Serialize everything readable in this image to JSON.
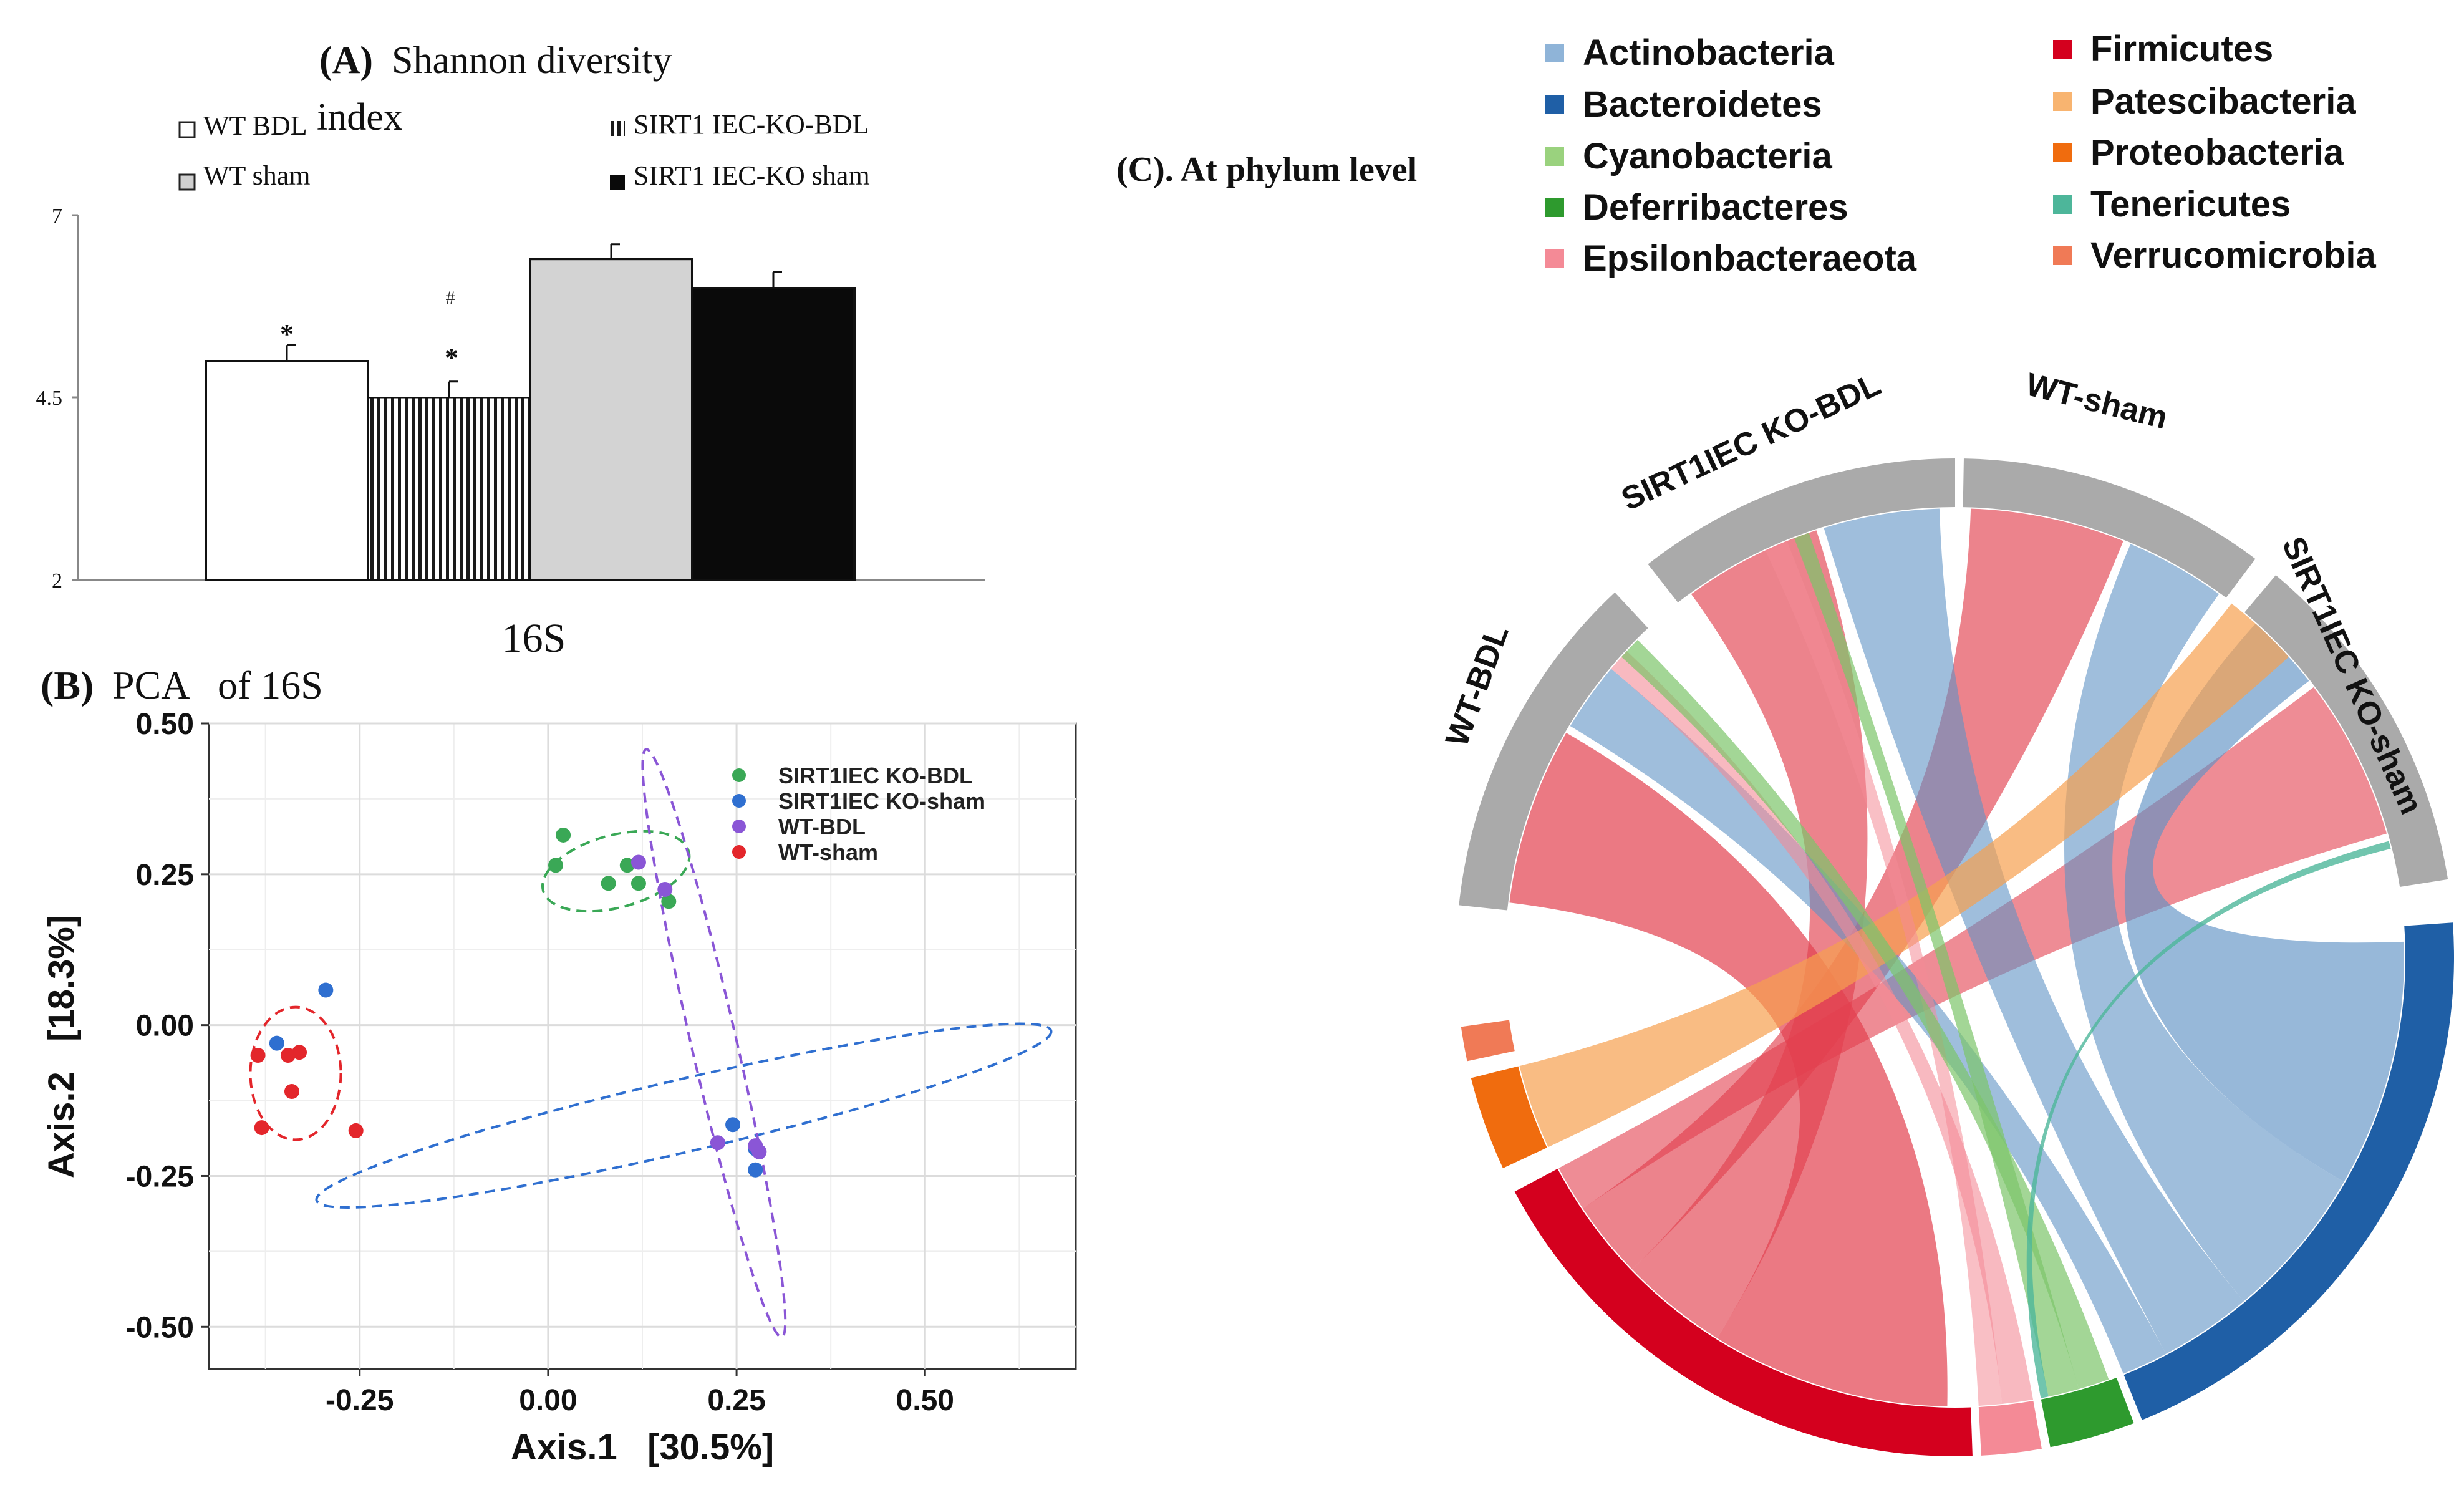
{
  "panelA": {
    "label": "(A)",
    "title_line1": "Shannon diversity",
    "title_line2": "index",
    "xlabel": "16S",
    "ylim": [
      2,
      7
    ],
    "yticks": [
      "7",
      "4.5",
      "2"
    ],
    "ytick_values": [
      7,
      4.5,
      2
    ],
    "legend": [
      {
        "label": "WT BDL",
        "fill": "#ffffff",
        "pattern": "none"
      },
      {
        "label": "SIRT1 IEC-KO-BDL",
        "fill": "#ffffff",
        "pattern": "vstripes"
      },
      {
        "label": "WT sham",
        "fill": "#d0d0d0",
        "pattern": "none"
      },
      {
        "label": "SIRT1 IEC-KO sham",
        "fill": "#0a0a0a",
        "pattern": "none"
      }
    ]
  },
  "chart_data": [
    {
      "type": "bar",
      "title": "(A) Shannon diversity index",
      "xlabel": "16S",
      "ylabel": "",
      "ylim": [
        2,
        7
      ],
      "categories": [
        "WT BDL",
        "SIRT1 IEC-KO-BDL",
        "WT sham",
        "SIRT1 IEC-KO sham"
      ],
      "values": [
        5.0,
        4.5,
        6.4,
        6.0
      ],
      "errors": [
        0.22,
        0.22,
        0.2,
        0.22
      ],
      "annotations": [
        {
          "category": "WT BDL",
          "marks": [
            "*"
          ]
        },
        {
          "category": "SIRT1 IEC-KO-BDL",
          "marks": [
            "#",
            "*"
          ]
        }
      ]
    },
    {
      "type": "scatter",
      "title": "(B) PCA of 16S",
      "xlabel": "Axis.1   [30.5%]",
      "ylabel": "Axis.2   [18.3%]",
      "xlim": [
        -0.45,
        0.7
      ],
      "ylim": [
        -0.57,
        0.5
      ],
      "xticks": [
        -0.25,
        0.0,
        0.25,
        0.5
      ],
      "xtick_labels": [
        "-0.25",
        "0.00",
        "0.25",
        "0.50"
      ],
      "yticks": [
        0.5,
        0.25,
        0.0,
        -0.25,
        -0.5
      ],
      "ytick_labels": [
        "0.50",
        "0.25",
        "0.00",
        "-0.25",
        "-0.50"
      ],
      "legend_position": "top-right",
      "series": [
        {
          "name": "SIRT1IEC KO-BDL",
          "color": "#3aa856",
          "points": [
            [
              0.02,
              0.315
            ],
            [
              0.01,
              0.265
            ],
            [
              0.08,
              0.235
            ],
            [
              0.12,
              0.235
            ],
            [
              0.16,
              0.205
            ],
            [
              0.105,
              0.265
            ]
          ],
          "ellipse": {
            "cx": 0.09,
            "cy": 0.255,
            "rx": 0.1,
            "ry": 0.06,
            "angle": -15
          }
        },
        {
          "name": "SIRT1IEC KO-sham",
          "color": "#2f6fd0",
          "points": [
            [
              -0.295,
              0.058
            ],
            [
              -0.36,
              -0.03
            ],
            [
              0.245,
              -0.165
            ],
            [
              0.275,
              -0.24
            ],
            [
              0.275,
              -0.205
            ]
          ],
          "ellipse": {
            "cx": 0.18,
            "cy": -0.15,
            "rx": 0.5,
            "ry": 0.06,
            "angle": -13
          }
        },
        {
          "name": "WT-BDL",
          "color": "#8a56d6",
          "points": [
            [
              0.12,
              0.27
            ],
            [
              0.155,
              0.225
            ],
            [
              0.225,
              -0.195
            ],
            [
              0.28,
              -0.21
            ],
            [
              0.275,
              -0.2
            ]
          ],
          "ellipse": {
            "cx": 0.22,
            "cy": -0.03,
            "rx": 0.03,
            "ry": 0.5,
            "angle": -13
          }
        },
        {
          "name": "WT-sham",
          "color": "#e3262b",
          "points": [
            [
              -0.385,
              -0.05
            ],
            [
              -0.345,
              -0.05
            ],
            [
              -0.33,
              -0.045
            ],
            [
              -0.34,
              -0.11
            ],
            [
              -0.38,
              -0.17
            ],
            [
              -0.255,
              -0.175
            ]
          ],
          "ellipse": {
            "cx": -0.335,
            "cy": -0.08,
            "rx": 0.06,
            "ry": 0.11,
            "angle": 0
          }
        }
      ]
    },
    {
      "type": "chord",
      "title": "(C). At phylum level",
      "sectors": [
        {
          "name": "WT-BDL",
          "color": "#aaaaaa"
        },
        {
          "name": "SIRT1IEC KO-BDL",
          "color": "#aaaaaa"
        },
        {
          "name": "WT-sham",
          "color": "#aaaaaa"
        },
        {
          "name": "SIRT1IEC KO-sham",
          "color": "#aaaaaa"
        },
        {
          "name": "Bacteroidetes",
          "color": "#1f5fa6"
        },
        {
          "name": "Deferribacteres",
          "color": "#2e9a2e"
        },
        {
          "name": "Epsilonbacteraeota",
          "color": "#f48a96"
        },
        {
          "name": "Firmicutes",
          "color": "#d4001e"
        },
        {
          "name": "Proteobacteria",
          "color": "#f06c0e"
        },
        {
          "name": "Verrucomicrobia",
          "color": "#f07a56"
        }
      ]
    }
  ],
  "panelB": {
    "label": "(B)",
    "title": "PCA   of 16S"
  },
  "panelC": {
    "title": "(C). At phylum level",
    "legend": [
      {
        "label": "Actinobacteria",
        "color": "#8fb4d8"
      },
      {
        "label": "Bacteroidetes",
        "color": "#1f5fa6"
      },
      {
        "label": "Cyanobacteria",
        "color": "#9ad27e"
      },
      {
        "label": "Deferribacteres",
        "color": "#2e9a2e"
      },
      {
        "label": "Epsilonbacteraeota",
        "color": "#f48a96"
      },
      {
        "label": "Firmicutes",
        "color": "#d4001e"
      },
      {
        "label": "Patescibacteria",
        "color": "#f8b470"
      },
      {
        "label": "Proteobacteria",
        "color": "#f06c0e"
      },
      {
        "label": "Tenericutes",
        "color": "#4db69a"
      },
      {
        "label": "Verrucomicrobia",
        "color": "#f07a56"
      }
    ],
    "sectors": {
      "wt_bdl": "WT-BDL",
      "ko_bdl": "SIRT1IEC KO-BDL",
      "wt_sham": "WT-sham",
      "ko_sham": "SIRT1IEC KO-sham"
    }
  }
}
